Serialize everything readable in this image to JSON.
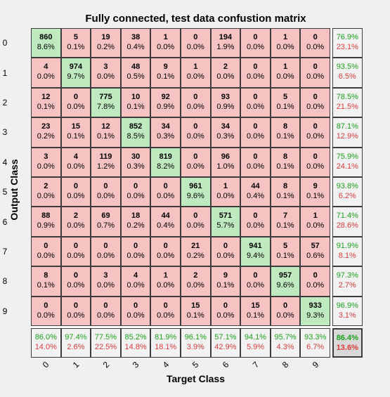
{
  "chart_data": {
    "type": "heatmap",
    "title": "Fully connected, test data confustion matrix",
    "xlabel": "Target Class",
    "ylabel": "Output Class",
    "row_labels": [
      "0",
      "1",
      "2",
      "3",
      "4",
      "5",
      "6",
      "7",
      "8",
      "9"
    ],
    "col_labels": [
      "0",
      "1",
      "2",
      "3",
      "4",
      "5",
      "6",
      "7",
      "8",
      "9"
    ],
    "counts": [
      [
        860,
        5,
        19,
        38,
        1,
        0,
        194,
        0,
        1,
        0
      ],
      [
        4,
        974,
        3,
        48,
        9,
        1,
        2,
        0,
        1,
        0
      ],
      [
        12,
        0,
        775,
        10,
        92,
        0,
        93,
        0,
        5,
        0
      ],
      [
        23,
        15,
        12,
        852,
        34,
        0,
        34,
        0,
        8,
        0
      ],
      [
        3,
        4,
        119,
        30,
        819,
        0,
        96,
        0,
        8,
        0
      ],
      [
        2,
        0,
        0,
        0,
        0,
        961,
        1,
        44,
        8,
        9
      ],
      [
        88,
        2,
        69,
        18,
        44,
        0,
        571,
        0,
        7,
        1
      ],
      [
        0,
        0,
        0,
        0,
        0,
        21,
        0,
        941,
        5,
        57
      ],
      [
        8,
        0,
        3,
        4,
        1,
        2,
        9,
        0,
        957,
        0
      ],
      [
        0,
        0,
        0,
        0,
        0,
        15,
        0,
        15,
        0,
        933
      ]
    ],
    "percents": [
      [
        "8.6%",
        "0.1%",
        "0.2%",
        "0.4%",
        "0.0%",
        "0.0%",
        "1.9%",
        "0.0%",
        "0.0%",
        "0.0%"
      ],
      [
        "0.0%",
        "9.7%",
        "0.0%",
        "0.5%",
        "0.1%",
        "0.0%",
        "0.0%",
        "0.0%",
        "0.0%",
        "0.0%"
      ],
      [
        "0.1%",
        "0.0%",
        "7.8%",
        "0.1%",
        "0.9%",
        "0.0%",
        "0.9%",
        "0.0%",
        "0.1%",
        "0.0%"
      ],
      [
        "0.2%",
        "0.1%",
        "0.1%",
        "8.5%",
        "0.3%",
        "0.0%",
        "0.3%",
        "0.0%",
        "0.1%",
        "0.0%"
      ],
      [
        "0.0%",
        "0.0%",
        "1.2%",
        "0.3%",
        "8.2%",
        "0.0%",
        "1.0%",
        "0.0%",
        "0.1%",
        "0.0%"
      ],
      [
        "0.0%",
        "0.0%",
        "0.0%",
        "0.0%",
        "0.0%",
        "9.6%",
        "0.0%",
        "0.4%",
        "0.1%",
        "0.1%"
      ],
      [
        "0.9%",
        "0.0%",
        "0.7%",
        "0.2%",
        "0.4%",
        "0.0%",
        "5.7%",
        "0.0%",
        "0.1%",
        "0.0%"
      ],
      [
        "0.0%",
        "0.0%",
        "0.0%",
        "0.0%",
        "0.0%",
        "0.2%",
        "0.0%",
        "9.4%",
        "0.1%",
        "0.6%"
      ],
      [
        "0.1%",
        "0.0%",
        "0.0%",
        "0.0%",
        "0.0%",
        "0.0%",
        "0.1%",
        "0.0%",
        "9.6%",
        "0.0%"
      ],
      [
        "0.0%",
        "0.0%",
        "0.0%",
        "0.0%",
        "0.0%",
        "0.1%",
        "0.0%",
        "0.1%",
        "0.0%",
        "9.3%"
      ]
    ],
    "row_summary": [
      [
        "76.9%",
        "23.1%"
      ],
      [
        "93.5%",
        "6.5%"
      ],
      [
        "78.5%",
        "21.5%"
      ],
      [
        "87.1%",
        "12.9%"
      ],
      [
        "75.9%",
        "24.1%"
      ],
      [
        "93.8%",
        "6.2%"
      ],
      [
        "71.4%",
        "28.6%"
      ],
      [
        "91.9%",
        "8.1%"
      ],
      [
        "97.3%",
        "2.7%"
      ],
      [
        "96.9%",
        "3.1%"
      ]
    ],
    "col_summary": [
      [
        "86.0%",
        "14.0%"
      ],
      [
        "97.4%",
        "2.6%"
      ],
      [
        "77.5%",
        "22.5%"
      ],
      [
        "85.2%",
        "14.8%"
      ],
      [
        "81.9%",
        "18.1%"
      ],
      [
        "96.1%",
        "3.9%"
      ],
      [
        "57.1%",
        "42.9%"
      ],
      [
        "94.1%",
        "5.9%"
      ],
      [
        "95.7%",
        "4.3%"
      ],
      [
        "93.3%",
        "6.7%"
      ]
    ],
    "overall": [
      "86.4%",
      "13.6%"
    ],
    "colors": {
      "correct": "#bfeabf",
      "incorrect": "#f6c2c2",
      "summary": "#f2f2f2",
      "total": "#d9d9d9",
      "correct_text": "#1aa21a",
      "incorrect_text": "#dd3b3b"
    }
  }
}
